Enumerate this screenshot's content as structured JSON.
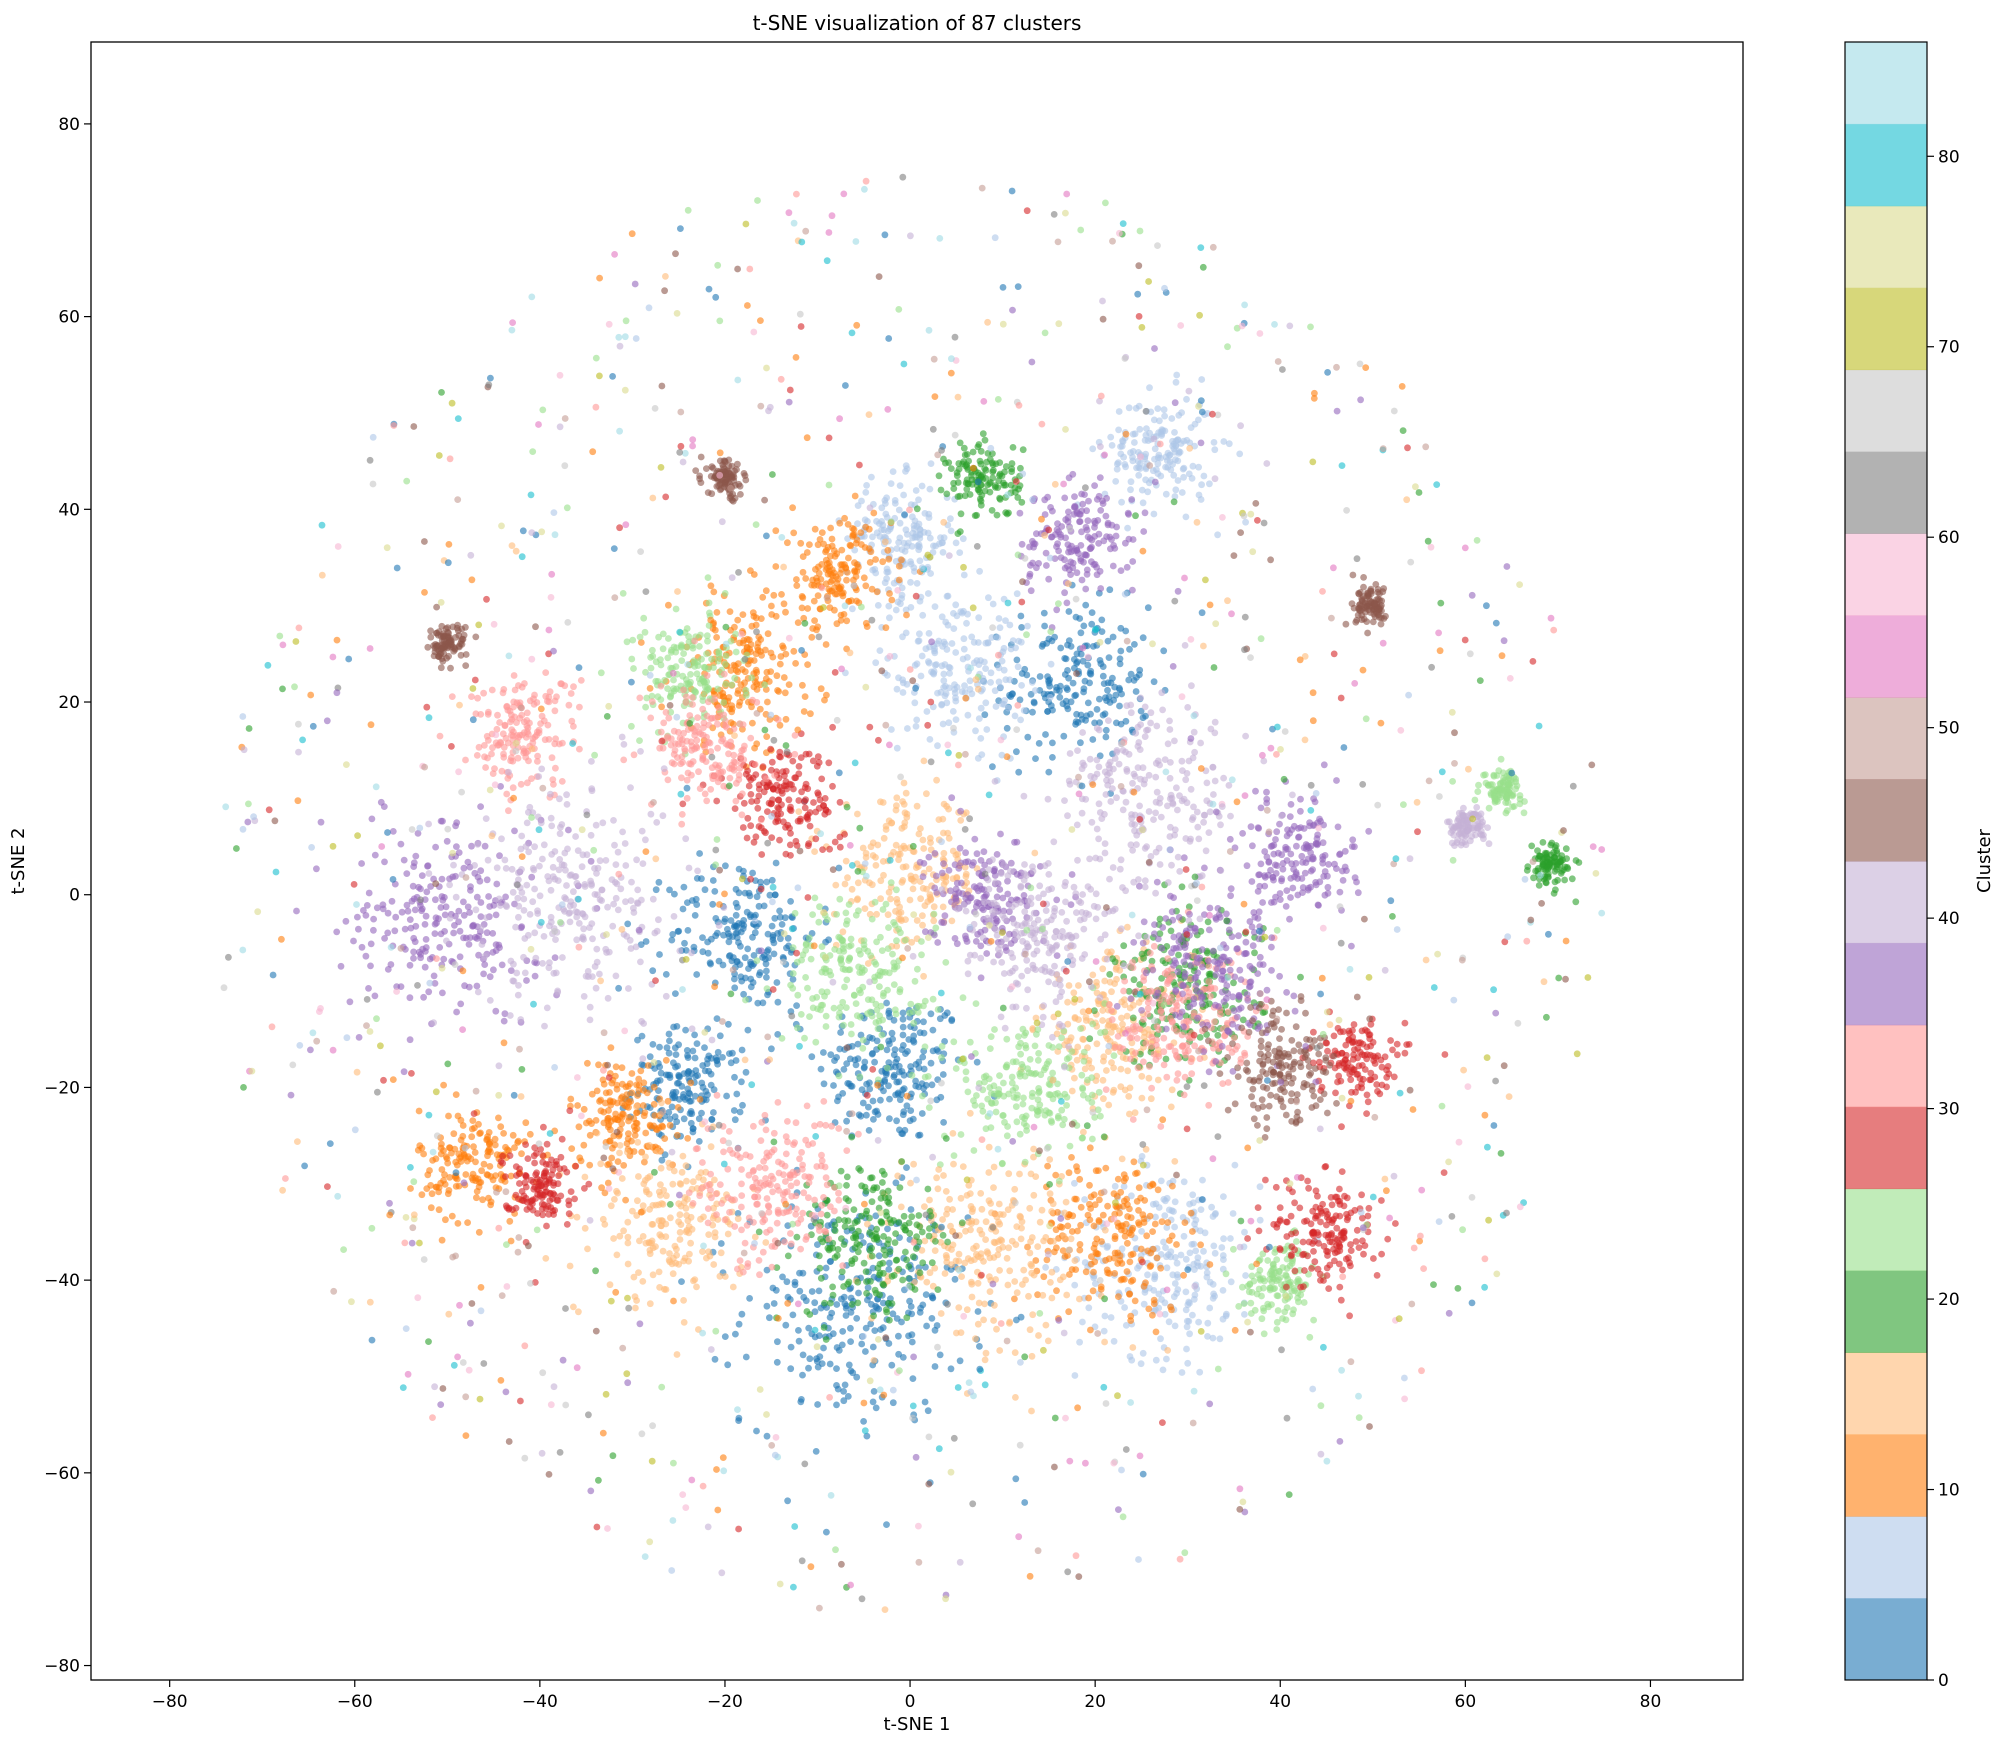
{
  "chart_data": {
    "type": "scatter",
    "title": "t-SNE visualization of 87 clusters",
    "xlabel": "t-SNE 1",
    "ylabel": "t-SNE 2",
    "xlim": [
      -88.5,
      90
    ],
    "ylim": [
      -81.5,
      88.5
    ],
    "xticks": [
      -80,
      -60,
      -40,
      -20,
      0,
      20,
      40,
      60,
      80
    ],
    "yticks": [
      -80,
      -60,
      -40,
      -20,
      0,
      20,
      40,
      60,
      80
    ],
    "xtick_labels": [
      "−80",
      "−60",
      "−40",
      "−20",
      "0",
      "20",
      "40",
      "60",
      "80"
    ],
    "ytick_labels": [
      "−80",
      "−60",
      "−40",
      "−20",
      "0",
      "20",
      "40",
      "60",
      "80"
    ],
    "grid": false,
    "colormap": "tab20",
    "colorbar": {
      "label": "Cluster",
      "range": [
        0,
        86
      ],
      "ticks": [
        0,
        10,
        20,
        30,
        40,
        50,
        60,
        70,
        80
      ],
      "tick_labels": [
        "0",
        "10",
        "20",
        "30",
        "40",
        "50",
        "60",
        "70",
        "80"
      ],
      "colors": [
        "#1f77b4",
        "#aec7e8",
        "#ff7f0e",
        "#ffbb78",
        "#2ca02c",
        "#98df8a",
        "#d62728",
        "#ff9896",
        "#9467bd",
        "#c5b0d5",
        "#8c564b",
        "#c49c94",
        "#e377c2",
        "#f7b6d2",
        "#7f7f7f",
        "#c7c7c7",
        "#bcbd22",
        "#dbdb8d",
        "#17becf",
        "#9edae5"
      ]
    },
    "clusters": [
      {
        "cluster": 0,
        "center": [
          -2,
          -18
        ],
        "spread": 4
      },
      {
        "cluster": 1,
        "center": [
          18,
          22
        ],
        "spread": 4
      },
      {
        "cluster": 2,
        "center": [
          -24,
          -20
        ],
        "spread": 3
      },
      {
        "cluster": 3,
        "center": [
          -6,
          -43
        ],
        "spread": 6
      },
      {
        "cluster": 4,
        "center": [
          -18,
          -4
        ],
        "spread": 4
      },
      {
        "cluster": 5,
        "center": [
          28,
          -38
        ],
        "spread": 5
      },
      {
        "cluster": 6,
        "center": [
          -1,
          37
        ],
        "spread": 3
      },
      {
        "cluster": 7,
        "center": [
          27,
          46
        ],
        "spread": 3
      },
      {
        "cluster": 8,
        "center": [
          5,
          24
        ],
        "spread": 4
      },
      {
        "cluster": 9,
        "center": [
          -47,
          -28
        ],
        "spread": 3
      },
      {
        "cluster": 10,
        "center": [
          -31,
          -23
        ],
        "spread": 3
      },
      {
        "cluster": 11,
        "center": [
          22,
          -35
        ],
        "spread": 4
      },
      {
        "cluster": 12,
        "center": [
          -8,
          33
        ],
        "spread": 3
      },
      {
        "cluster": 13,
        "center": [
          -18,
          23
        ],
        "spread": 4
      },
      {
        "cluster": 14,
        "center": [
          22,
          -14
        ],
        "spread": 4
      },
      {
        "cluster": 15,
        "center": [
          0,
          2
        ],
        "spread": 4
      },
      {
        "cluster": 16,
        "center": [
          -26,
          -34
        ],
        "spread": 4
      },
      {
        "cluster": 17,
        "center": [
          8,
          -36
        ],
        "spread": 5
      },
      {
        "cluster": 18,
        "center": [
          8,
          43
        ],
        "spread": 2
      },
      {
        "cluster": 19,
        "center": [
          30,
          -10
        ],
        "spread": 4
      },
      {
        "cluster": 20,
        "center": [
          69,
          3
        ],
        "spread": 1
      },
      {
        "cluster": 21,
        "center": [
          -4,
          -36
        ],
        "spread": 4
      },
      {
        "cluster": 22,
        "center": [
          64,
          11
        ],
        "spread": 1
      },
      {
        "cluster": 23,
        "center": [
          40,
          -40
        ],
        "spread": 2
      },
      {
        "cluster": 24,
        "center": [
          -6,
          -8
        ],
        "spread": 4
      },
      {
        "cluster": 25,
        "center": [
          -24,
          23
        ],
        "spread": 3
      },
      {
        "cluster": 26,
        "center": [
          13,
          -20
        ],
        "spread": 4
      },
      {
        "cluster": 27,
        "center": [
          45,
          -35
        ],
        "spread": 3
      },
      {
        "cluster": 28,
        "center": [
          48,
          -17
        ],
        "spread": 2
      },
      {
        "cluster": 29,
        "center": [
          -40,
          -30
        ],
        "spread": 2
      },
      {
        "cluster": 30,
        "center": [
          -14,
          10
        ],
        "spread": 3
      },
      {
        "cluster": 31,
        "center": [
          -42,
          17
        ],
        "spread": 3
      },
      {
        "cluster": 32,
        "center": [
          -15,
          -31
        ],
        "spread": 4
      },
      {
        "cluster": 33,
        "center": [
          30,
          -13
        ],
        "spread": 4
      },
      {
        "cluster": 34,
        "center": [
          -22,
          15
        ],
        "spread": 3
      },
      {
        "cluster": 35,
        "center": [
          8,
          0
        ],
        "spread": 3
      },
      {
        "cluster": 36,
        "center": [
          33,
          -8
        ],
        "spread": 4
      },
      {
        "cluster": 37,
        "center": [
          18,
          37
        ],
        "spread": 3
      },
      {
        "cluster": 38,
        "center": [
          -50,
          -2
        ],
        "spread": 5
      },
      {
        "cluster": 39,
        "center": [
          42,
          4
        ],
        "spread": 3
      },
      {
        "cluster": 40,
        "center": [
          -36,
          0
        ],
        "spread": 6
      },
      {
        "cluster": 41,
        "center": [
          26,
          10
        ],
        "spread": 5
      },
      {
        "cluster": 42,
        "center": [
          14,
          -4
        ],
        "spread": 4
      },
      {
        "cluster": 43,
        "center": [
          60,
          7
        ],
        "spread": 1
      },
      {
        "cluster": 44,
        "center": [
          40,
          -18
        ],
        "spread": 3
      },
      {
        "cluster": 45,
        "center": [
          -50,
          26
        ],
        "spread": 1
      },
      {
        "cluster": 46,
        "center": [
          -20,
          43
        ],
        "spread": 1
      },
      {
        "cluster": 47,
        "center": [
          50,
          30
        ],
        "spread": 1
      }
    ]
  }
}
